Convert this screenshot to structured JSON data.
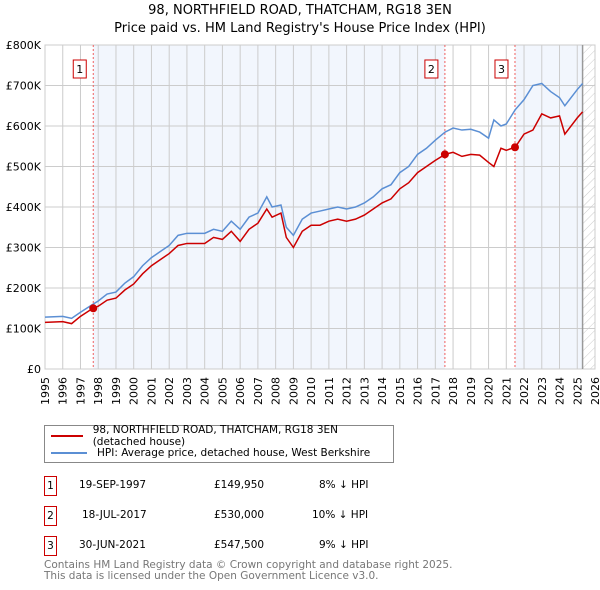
{
  "title": "98, NORTHFIELD ROAD, THATCHAM, RG18 3EN",
  "subtitle": "Price paid vs. HM Land Registry's House Price Index (HPI)",
  "chart_data": {
    "type": "line",
    "xlim": [
      1995,
      2026
    ],
    "ylim": [
      0,
      800000
    ],
    "yticks": [
      0,
      100000,
      200000,
      300000,
      400000,
      500000,
      600000,
      700000,
      800000
    ],
    "ytick_labels": [
      "£0",
      "£100K",
      "£200K",
      "£300K",
      "£400K",
      "£500K",
      "£600K",
      "£700K",
      "£800K"
    ],
    "xticks": [
      "1995",
      "1996",
      "1997",
      "1998",
      "1999",
      "2000",
      "2001",
      "2002",
      "2003",
      "2004",
      "2005",
      "2006",
      "2007",
      "2008",
      "2009",
      "2010",
      "2011",
      "2012",
      "2013",
      "2014",
      "2015",
      "2016",
      "2017",
      "2018",
      "2019",
      "2020",
      "2021",
      "2022",
      "2023",
      "2024",
      "2025",
      "2026"
    ],
    "grid": true,
    "series": [
      {
        "name": "98, NORTHFIELD ROAD, THATCHAM, RG18 3EN (detached house)",
        "color": "#cc0000",
        "x": [
          1995,
          1996,
          1996.5,
          1997,
          1997.7,
          1998,
          1998.5,
          1999,
          1999.5,
          2000,
          2000.5,
          2001,
          2001.5,
          2002,
          2002.5,
          2003,
          2004,
          2004.5,
          2005,
          2005.5,
          2006,
          2006.5,
          2007,
          2007.5,
          2007.8,
          2008.3,
          2008.6,
          2009,
          2009.5,
          2010,
          2010.5,
          2011,
          2011.5,
          2012,
          2012.5,
          2013,
          2013.5,
          2014,
          2014.5,
          2015,
          2015.5,
          2016,
          2016.5,
          2017,
          2017.55,
          2018,
          2018.5,
          2019,
          2019.5,
          2020,
          2020.3,
          2020.7,
          2021,
          2021.5,
          2022,
          2022.5,
          2023,
          2023.5,
          2024,
          2024.3,
          2025,
          2025.3
        ],
        "y": [
          115000,
          117000,
          112000,
          130000,
          149950,
          155000,
          170000,
          175000,
          195000,
          210000,
          235000,
          255000,
          270000,
          285000,
          305000,
          310000,
          310000,
          325000,
          320000,
          340000,
          315000,
          345000,
          360000,
          395000,
          375000,
          385000,
          325000,
          300000,
          340000,
          355000,
          355000,
          365000,
          370000,
          365000,
          370000,
          380000,
          395000,
          410000,
          420000,
          445000,
          460000,
          485000,
          500000,
          515000,
          530000,
          535000,
          525000,
          530000,
          528000,
          510000,
          500000,
          545000,
          540000,
          547500,
          580000,
          590000,
          630000,
          620000,
          625000,
          580000,
          620000,
          635000
        ]
      },
      {
        "name": "HPI: Average price, detached house, West Berkshire",
        "color": "#5b8fd4",
        "x": [
          1995,
          1996,
          1996.5,
          1997,
          1997.7,
          1998,
          1998.5,
          1999,
          1999.5,
          2000,
          2000.5,
          2001,
          2001.5,
          2002,
          2002.5,
          2003,
          2004,
          2004.5,
          2005,
          2005.5,
          2006,
          2006.5,
          2007,
          2007.5,
          2007.8,
          2008.3,
          2008.6,
          2009,
          2009.5,
          2010,
          2010.5,
          2011,
          2011.5,
          2012,
          2012.5,
          2013,
          2013.5,
          2014,
          2014.5,
          2015,
          2015.5,
          2016,
          2016.5,
          2017,
          2017.55,
          2018,
          2018.5,
          2019,
          2019.5,
          2020,
          2020.3,
          2020.7,
          2021,
          2021.5,
          2022,
          2022.5,
          2023,
          2023.5,
          2024,
          2024.3,
          2025,
          2025.3
        ],
        "y": [
          128000,
          130000,
          125000,
          140000,
          160000,
          168000,
          185000,
          190000,
          212000,
          228000,
          255000,
          275000,
          290000,
          305000,
          330000,
          335000,
          335000,
          345000,
          340000,
          365000,
          345000,
          375000,
          385000,
          425000,
          400000,
          405000,
          350000,
          330000,
          370000,
          385000,
          390000,
          395000,
          400000,
          395000,
          400000,
          410000,
          425000,
          445000,
          455000,
          485000,
          500000,
          530000,
          545000,
          565000,
          585000,
          595000,
          590000,
          592000,
          585000,
          570000,
          615000,
          600000,
          605000,
          640000,
          665000,
          700000,
          705000,
          685000,
          670000,
          650000,
          690000,
          705000
        ]
      }
    ],
    "sales": [
      {
        "label": "1",
        "x": 1997.72,
        "y": 149950
      },
      {
        "label": "2",
        "x": 2017.54,
        "y": 530000
      },
      {
        "label": "3",
        "x": 2021.49,
        "y": 547500
      }
    ],
    "legend_position": "below"
  },
  "table": [
    {
      "n": "1",
      "date": "19-SEP-1997",
      "price": "£149,950",
      "hpi": "8% ↓ HPI"
    },
    {
      "n": "2",
      "date": "18-JUL-2017",
      "price": "£530,000",
      "hpi": "10% ↓ HPI"
    },
    {
      "n": "3",
      "date": "30-JUN-2021",
      "price": "£547,500",
      "hpi": "9% ↓ HPI"
    }
  ],
  "footer": [
    "Contains HM Land Registry data © Crown copyright and database right 2025.",
    "This data is licensed under the Open Government Licence v3.0."
  ]
}
